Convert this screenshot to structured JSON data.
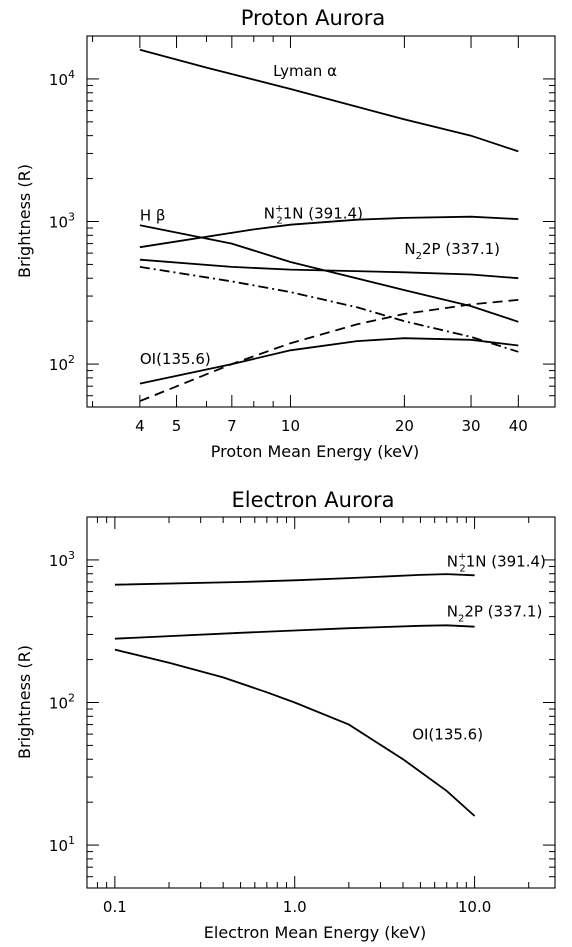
{
  "chart_data": [
    {
      "type": "line",
      "title": "Proton Aurora",
      "xlabel": "Proton Mean Energy (keV)",
      "ylabel": "Brightness (R)",
      "xscale": "log",
      "yscale": "log",
      "xlim": [
        2.9,
        50
      ],
      "ylim": [
        50,
        20000
      ],
      "xticks": [
        {
          "v": 4,
          "label": "4"
        },
        {
          "v": 5,
          "label": "5"
        },
        {
          "v": 7,
          "label": "7"
        },
        {
          "v": 10,
          "label": "10"
        },
        {
          "v": 20,
          "label": "20"
        },
        {
          "v": 30,
          "label": "30"
        },
        {
          "v": 40,
          "label": "40"
        }
      ],
      "yticks": [
        {
          "v": 100,
          "base": "10",
          "exp": "2"
        },
        {
          "v": 1000,
          "base": "10",
          "exp": "3"
        },
        {
          "v": 10000,
          "base": "10",
          "exp": "4"
        }
      ],
      "series": [
        {
          "key": "lyman",
          "style": "solid",
          "x": [
            4,
            6,
            10,
            20,
            30,
            40
          ],
          "y": [
            16000,
            12000,
            8500,
            5200,
            4000,
            3100
          ]
        },
        {
          "key": "n2p1n",
          "style": "solid",
          "x": [
            4,
            8,
            10,
            15,
            20,
            30,
            40
          ],
          "y": [
            660,
            880,
            950,
            1030,
            1060,
            1080,
            1040
          ]
        },
        {
          "key": "hbeta",
          "style": "solid",
          "x": [
            4,
            7,
            10,
            20,
            30,
            40
          ],
          "y": [
            940,
            700,
            520,
            330,
            255,
            198
          ]
        },
        {
          "key": "n22p",
          "style": "solid",
          "x": [
            4,
            7,
            10,
            20,
            30,
            40
          ],
          "y": [
            540,
            480,
            460,
            440,
            425,
            400
          ]
        },
        {
          "key": "dashdot",
          "style": "dashdot",
          "x": [
            4,
            7,
            10,
            15,
            20,
            30,
            40
          ],
          "y": [
            480,
            380,
            320,
            250,
            200,
            155,
            122
          ]
        },
        {
          "key": "oi",
          "style": "solid",
          "x": [
            4,
            7,
            10,
            15,
            20,
            30,
            40
          ],
          "y": [
            73,
            100,
            125,
            145,
            152,
            148,
            135
          ]
        },
        {
          "key": "dashed",
          "style": "dashed",
          "x": [
            4,
            7,
            10,
            15,
            20,
            30,
            40
          ],
          "y": [
            55,
            100,
            140,
            190,
            225,
            262,
            282
          ]
        }
      ],
      "annotations": {
        "lyman": {
          "text": "Lyman α",
          "x": 9,
          "y": 10500
        },
        "hbeta": {
          "text": "H β",
          "x": 4,
          "y": 1020
        },
        "n2p1n": {
          "main": "N",
          "sub": "2",
          "sup": "+",
          "rest": "1N (391.4)",
          "x": 8.5,
          "y": 1050
        },
        "n22p": {
          "main": "N",
          "sub": "2",
          "rest": "2P (337.1)",
          "x": 20,
          "y": 590
        },
        "oi": {
          "text": "OI(135.6)",
          "x": 4,
          "y": 100
        }
      }
    },
    {
      "type": "line",
      "title": "Electron Aurora",
      "xlabel": "Electron Mean Energy (keV)",
      "ylabel": "Brightness (R)",
      "xscale": "log",
      "yscale": "log",
      "xlim": [
        0.07,
        28
      ],
      "ylim": [
        5,
        2000
      ],
      "xticks": [
        {
          "v": 0.1,
          "label": "0.1"
        },
        {
          "v": 1,
          "label": "1.0"
        },
        {
          "v": 10,
          "label": "10.0"
        }
      ],
      "yticks": [
        {
          "v": 10,
          "base": "10",
          "exp": "1"
        },
        {
          "v": 100,
          "base": "10",
          "exp": "2"
        },
        {
          "v": 1000,
          "base": "10",
          "exp": "3"
        }
      ],
      "series": [
        {
          "key": "n2p1n",
          "style": "solid",
          "x": [
            0.1,
            0.5,
            1,
            2,
            5,
            7,
            10
          ],
          "y": [
            670,
            700,
            720,
            745,
            785,
            795,
            780
          ]
        },
        {
          "key": "n22p",
          "style": "solid",
          "x": [
            0.1,
            0.5,
            1,
            2,
            5,
            7,
            10
          ],
          "y": [
            280,
            308,
            320,
            332,
            345,
            348,
            340
          ]
        },
        {
          "key": "oi",
          "style": "solid",
          "x": [
            0.1,
            0.2,
            0.4,
            0.7,
            1,
            2,
            4,
            7,
            10
          ],
          "y": [
            235,
            190,
            150,
            118,
            100,
            70,
            40,
            24,
            16
          ]
        }
      ],
      "annotations": {
        "n2p1n": {
          "main": "N",
          "sub": "2",
          "sup": "+",
          "rest": "1N (391.4)",
          "x": 7,
          "y": 900
        },
        "n22p": {
          "main": "N",
          "sub": "2",
          "rest": "2P (337.1)",
          "x": 7,
          "y": 400
        },
        "oi": {
          "text": "OI(135.6)",
          "x": 4.5,
          "y": 55
        }
      }
    }
  ]
}
